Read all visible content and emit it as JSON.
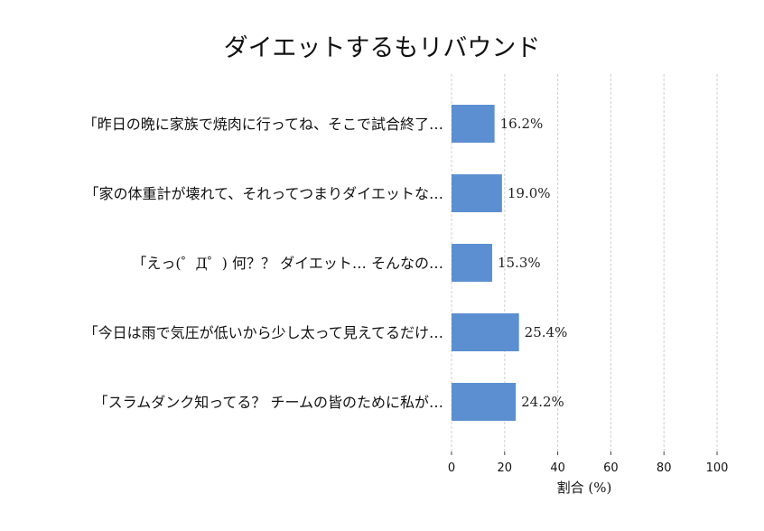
{
  "chart_data": {
    "type": "bar",
    "orientation": "horizontal",
    "title": "ダイエットするもリバウンド",
    "xlabel": "割合 (%)",
    "ylabel": "",
    "xlim": [
      0,
      100
    ],
    "xticks": [
      0,
      20,
      40,
      60,
      80,
      100
    ],
    "grid": true,
    "categories": [
      "「昨日の晩に家族で焼肉に行ってね、そこで試合終了…",
      "「家の体重計が壊れて、それってつまりダイエットな…",
      "「えっ(゜Д゜) 何？？ ダイエット… そんなの…",
      "「今日は雨で気圧が低いから少し太って見えてるだけ…",
      "「スラムダンク知ってる？ チームの皆のために私が…"
    ],
    "values": [
      16.2,
      19.0,
      15.3,
      25.4,
      24.2
    ],
    "value_labels": [
      "16.2%",
      "19.0%",
      "15.3%",
      "25.4%",
      "24.2%"
    ],
    "bar_color": "#5b8fd1"
  }
}
